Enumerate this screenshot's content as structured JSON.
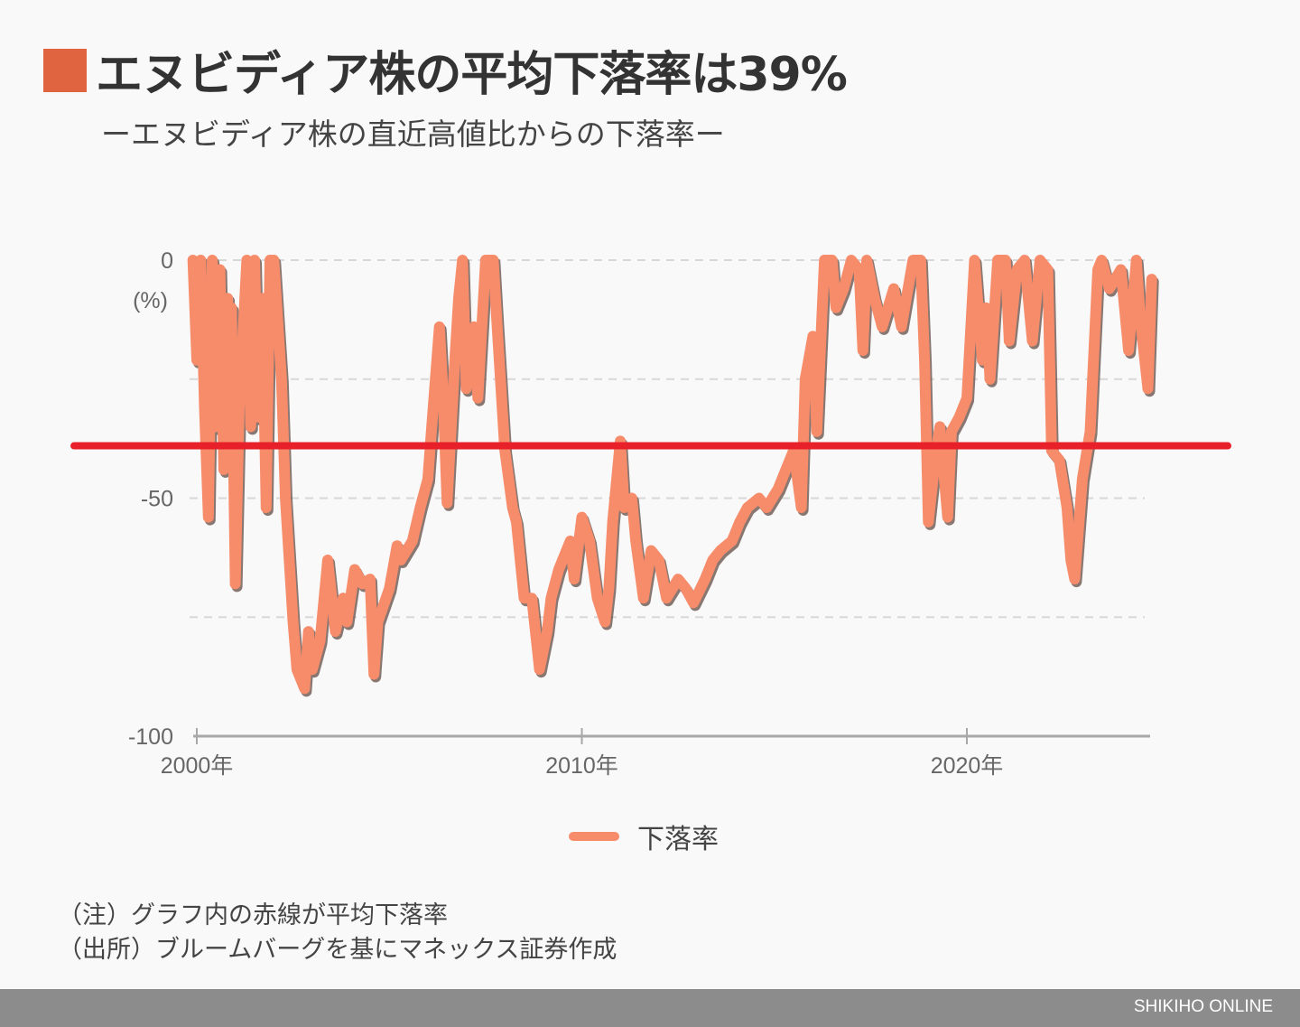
{
  "header": {
    "title": "エヌビディア株の平均下落率は39%",
    "subtitle": "ーエヌビディア株の直近高値比からの下落率ー"
  },
  "colors": {
    "accent": "#e0643f",
    "series": "#f78c6b",
    "mean_line": "#e8202a",
    "footer": "#8c8c8c"
  },
  "chart_data": {
    "type": "line",
    "title": "エヌビディア株の平均下落率は39%",
    "subtitle": "ーエヌビディア株の直近高値比からの下落率ー",
    "ylabel": "(%)",
    "ylim": [
      -100,
      0
    ],
    "yticks": [
      {
        "value": 0,
        "label": "0"
      },
      {
        "value": -50,
        "label": "-50"
      },
      {
        "value": -100,
        "label": "-100"
      }
    ],
    "ygrid": [
      0,
      -25,
      -50,
      -75
    ],
    "xticks": [
      {
        "value": 2000,
        "label": "2000年"
      },
      {
        "value": 2010,
        "label": "2010年"
      },
      {
        "value": 2020,
        "label": "2020年"
      }
    ],
    "xlim": [
      2000,
      2024.75
    ],
    "grid": true,
    "legend_position": "bottom",
    "mean_line": {
      "value": -39
    },
    "series": [
      {
        "name": "下落率",
        "x": [
          1999.9,
          2000.0,
          2000.1,
          2000.2,
          2000.3,
          2000.4,
          2000.5,
          2000.6,
          2000.7,
          2000.8,
          2000.85,
          2000.9,
          2001.0,
          2001.1,
          2001.3,
          2001.4,
          2001.5,
          2001.6,
          2001.7,
          2001.8,
          2001.9,
          2002.0,
          2002.2,
          2002.3,
          2002.5,
          2002.6,
          2002.8,
          2002.9,
          2003.0,
          2003.2,
          2003.4,
          2003.6,
          2003.8,
          2003.9,
          2004.1,
          2004.3,
          2004.5,
          2004.6,
          2004.7,
          2005.0,
          2005.2,
          2005.3,
          2005.6,
          2005.8,
          2006.0,
          2006.1,
          2006.3,
          2006.4,
          2006.5,
          2006.7,
          2006.8,
          2006.9,
          2007.0,
          2007.2,
          2007.3,
          2007.5,
          2007.7,
          2007.8,
          2008.0,
          2008.2,
          2008.3,
          2008.5,
          2008.7,
          2008.9,
          2009.1,
          2009.2,
          2009.4,
          2009.7,
          2009.8,
          2010.0,
          2010.2,
          2010.4,
          2010.6,
          2010.7,
          2010.8,
          2011.0,
          2011.1,
          2011.3,
          2011.4,
          2011.6,
          2011.8,
          2012.0,
          2012.2,
          2012.5,
          2012.7,
          2012.9,
          2013.2,
          2013.4,
          2013.6,
          2013.9,
          2014.1,
          2014.3,
          2014.6,
          2014.8,
          2015.1,
          2015.3,
          2015.5,
          2015.7,
          2015.8,
          2016.0,
          2016.1,
          2016.3,
          2016.5,
          2016.6,
          2016.8,
          2017.0,
          2017.2,
          2017.3,
          2017.4,
          2017.6,
          2017.8,
          2018.1,
          2018.3,
          2018.6,
          2018.8,
          2018.9,
          2019.0,
          2019.2,
          2019.3,
          2019.5,
          2019.6,
          2019.8,
          2020.0,
          2020.2,
          2020.4,
          2020.5,
          2020.6,
          2020.8,
          2021.0,
          2021.1,
          2021.3,
          2021.5,
          2021.7,
          2021.9,
          2022.1,
          2022.2,
          2022.4,
          2022.6,
          2022.7,
          2022.8,
          2023.0,
          2023.2,
          2023.4,
          2023.5,
          2023.7,
          2024.0,
          2024.2,
          2024.4,
          2024.5,
          2024.7,
          2024.8
        ],
        "values": [
          0,
          -21,
          0,
          -31,
          -54,
          0,
          -35,
          -2,
          -44,
          -8,
          -35,
          -10,
          -68,
          -31,
          0,
          -35,
          0,
          -33,
          -8,
          -52,
          0,
          0,
          -25,
          -50,
          -76,
          -86,
          -90,
          -78,
          -86,
          -80,
          -63,
          -78,
          -71,
          -76,
          -65,
          -68,
          -67,
          -87,
          -76,
          -69,
          -60,
          -63,
          -59,
          -52,
          -46,
          -35,
          -14,
          -29,
          -51,
          -21,
          -8,
          0,
          -27,
          -14,
          -29,
          0,
          0,
          -14,
          -40,
          -52,
          -55,
          -71,
          -71,
          -86,
          -78,
          -71,
          -65,
          -59,
          -67,
          -54,
          -59,
          -71,
          -76,
          -69,
          -55,
          -38,
          -52,
          -50,
          -59,
          -71,
          -61,
          -63,
          -71,
          -67,
          -69,
          -72,
          -67,
          -63,
          -61,
          -59,
          -55,
          -52,
          -50,
          -52,
          -48,
          -44,
          -40,
          -52,
          -25,
          -16,
          -36,
          0,
          0,
          -10,
          -6,
          0,
          -2,
          -19,
          0,
          -8,
          -14,
          -6,
          -14,
          0,
          0,
          -21,
          -55,
          -40,
          -35,
          -54,
          -36,
          -33,
          -29,
          0,
          -21,
          -10,
          -25,
          0,
          0,
          -17,
          -2,
          0,
          -17,
          0,
          -2,
          -40,
          -42,
          -52,
          -63,
          -67,
          -46,
          -36,
          -2,
          0,
          -6,
          -2,
          -19,
          0,
          -12,
          -27,
          -4
        ]
      }
    ]
  },
  "legend": {
    "items": [
      {
        "label": "下落率"
      }
    ]
  },
  "notes": [
    "（注）グラフ内の赤線が平均下落率",
    "（出所）ブルームバーグを基にマネックス証券作成"
  ],
  "footer": {
    "brand": "SHIKIHO ONLINE"
  }
}
